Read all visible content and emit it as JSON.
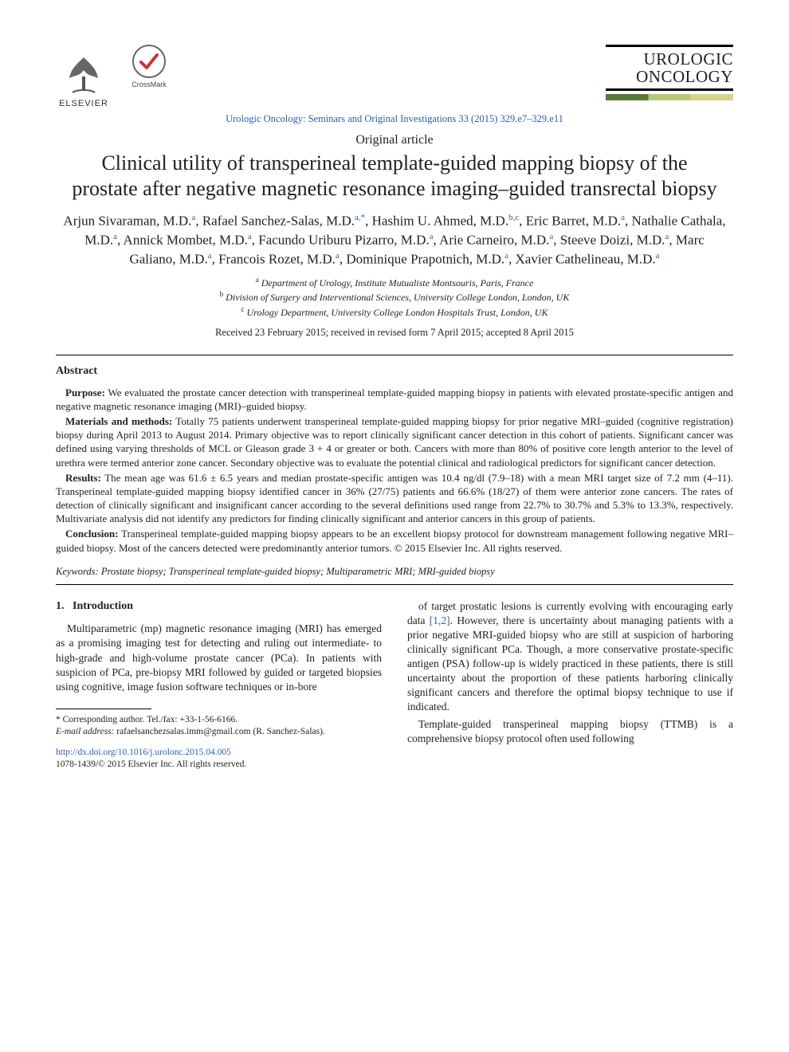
{
  "header": {
    "elsevier_label": "ELSEVIER",
    "crossmark_label": "CrossMark",
    "journal_name_line1": "UROLOGIC",
    "journal_name_line2": "ONCOLOGY",
    "citation": "Urologic Oncology: Seminars and Original Investigations 33 (2015) 329.e7–329.e11"
  },
  "article": {
    "type": "Original article",
    "title": "Clinical utility of transperineal template-guided mapping biopsy of the prostate after negative magnetic resonance imaging–guided transrectal biopsy",
    "authors_html": "Arjun Sivaraman, M.D.<sup>a</sup>, Rafael Sanchez-Salas, M.D.<sup>a,*</sup>, Hashim U. Ahmed, M.D.<sup>b,c</sup>, Eric Barret, M.D.<sup>a</sup>, Nathalie Cathala, M.D.<sup>a</sup>, Annick Mombet, M.D.<sup>a</sup>, Facundo Uriburu Pizarro, M.D.<sup>a</sup>, Arie Carneiro, M.D.<sup>a</sup>, Steeve Doizi, M.D.<sup>a</sup>, Marc Galiano, M.D.<sup>a</sup>, Francois Rozet, M.D.<sup>a</sup>, Dominique Prapotnich, M.D.<sup>a</sup>, Xavier Cathelineau, M.D.<sup>a</sup>",
    "affiliations": [
      {
        "marker": "a",
        "text": "Department of Urology, Institute Mutualiste Montsouris, Paris, France"
      },
      {
        "marker": "b",
        "text": "Division of Surgery and Interventional Sciences, University College London, London, UK"
      },
      {
        "marker": "c",
        "text": "Urology Department, University College London Hospitals Trust, London, UK"
      }
    ],
    "dates": "Received 23 February 2015; received in revised form 7 April 2015; accepted 8 April 2015"
  },
  "abstract": {
    "heading": "Abstract",
    "purpose_label": "Purpose:",
    "purpose": " We evaluated the prostate cancer detection with transperineal template-guided mapping biopsy in patients with elevated prostate-specific antigen and negative magnetic resonance imaging (MRI)–guided biopsy.",
    "methods_label": "Materials and methods:",
    "methods": " Totally 75 patients underwent transperineal template-guided mapping biopsy for prior negative MRI–guided (cognitive registration) biopsy during April 2013 to August 2014. Primary objective was to report clinically significant cancer detection in this cohort of patients. Significant cancer was defined using varying thresholds of MCL or Gleason grade 3 + 4 or greater or both. Cancers with more than 80% of positive core length anterior to the level of urethra were termed anterior zone cancer. Secondary objective was to evaluate the potential clinical and radiological predictors for significant cancer detection.",
    "results_label": "Results:",
    "results": " The mean age was 61.6 ± 6.5 years and median prostate-specific antigen was 10.4 ng/dl (7.9–18) with a mean MRI target size of 7.2 mm (4–11). Transperineal template-guided mapping biopsy identified cancer in 36% (27/75) patients and 66.6% (18/27) of them were anterior zone cancers. The rates of detection of clinically significant and insignificant cancer according to the several definitions used range from 22.7% to 30.7% and 5.3% to 13.3%, respectively. Multivariate analysis did not identify any predictors for finding clinically significant and anterior cancers in this group of patients.",
    "conclusion_label": "Conclusion:",
    "conclusion": " Transperineal template-guided mapping biopsy appears to be an excellent biopsy protocol for downstream management following negative MRI–guided biopsy. Most of the cancers detected were predominantly anterior tumors.   © 2015 Elsevier Inc. All rights reserved."
  },
  "keywords": {
    "label": "Keywords:",
    "text": " Prostate biopsy; Transperineal template-guided biopsy; Multiparametric MRI; MRI-guided biopsy"
  },
  "body": {
    "section_number": "1.",
    "section_title": "Introduction",
    "col1_p1": "Multiparametric (mp) magnetic resonance imaging (MRI) has emerged as a promising imaging test for detecting and ruling out intermediate- to high-grade and high-volume prostate cancer (PCa). In patients with suspicion of PCa, pre-biopsy MRI followed by guided or targeted biopsies using cognitive, image fusion software techniques or in-bore",
    "col2_p1_a": "of target prostatic lesions is currently evolving with encouraging early data ",
    "col2_ref": "[1,2]",
    "col2_p1_b": ". However, there is uncertainty about managing patients with a prior negative MRI-guided biopsy who are still at suspicion of harboring clinically significant PCa. Though, a more conservative prostate-specific antigen (PSA) follow-up is widely practiced in these patients, there is still uncertainty about the proportion of these patients harboring clinically significant cancers and therefore the optimal biopsy technique to use if indicated.",
    "col2_p2": "Template-guided transperineal mapping biopsy (TTMB) is a comprehensive biopsy protocol often used following"
  },
  "footnotes": {
    "corresponding": "* Corresponding author. Tel./fax: +33-1-56-6166.",
    "email_label": "E-mail address:",
    "email": " rafaelsanchezsalas.imm@gmail.com (R. Sanchez-Salas)."
  },
  "footer": {
    "doi": "http://dx.doi.org/10.1016/j.urolonc.2015.04.005",
    "copyright": "1078-1439/© 2015 Elsevier Inc. All rights reserved."
  },
  "colors": {
    "link": "#2a5db0",
    "text": "#212121"
  }
}
